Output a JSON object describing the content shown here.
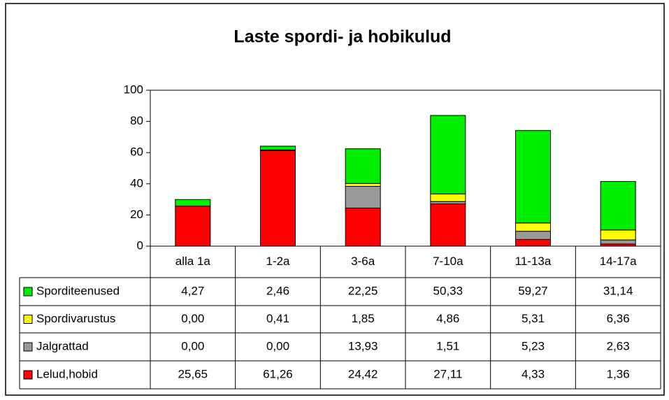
{
  "chart_data": {
    "type": "bar",
    "stacked": true,
    "title": "Laste spordi- ja hobikulud",
    "categories": [
      "alla 1a",
      "1-2a",
      "3-6a",
      "7-10a",
      "11-13a",
      "14-17a"
    ],
    "series": [
      {
        "name": "Sporditeenused",
        "color": "#00ee00",
        "values": [
          4.27,
          2.46,
          22.25,
          50.33,
          59.27,
          31.14
        ],
        "value_labels": [
          "4,27",
          "2,46",
          "22,25",
          "50,33",
          "59,27",
          "31,14"
        ]
      },
      {
        "name": "Spordivarustus",
        "color": "#ffff00",
        "values": [
          0.0,
          0.41,
          1.85,
          4.86,
          5.31,
          6.36
        ],
        "value_labels": [
          "0,00",
          "0,41",
          "1,85",
          "4,86",
          "5,31",
          "6,36"
        ]
      },
      {
        "name": "Jalgrattad",
        "color": "#999999",
        "values": [
          0.0,
          0.0,
          13.93,
          1.51,
          5.23,
          2.63
        ],
        "value_labels": [
          "0,00",
          "0,00",
          "13,93",
          "1,51",
          "5,23",
          "2,63"
        ]
      },
      {
        "name": "Lelud,hobid",
        "color": "#ff0000",
        "values": [
          25.65,
          61.26,
          24.42,
          27.11,
          4.33,
          1.36
        ],
        "value_labels": [
          "25,65",
          "61,26",
          "24,42",
          "27,11",
          "4,33",
          "1,36"
        ]
      }
    ],
    "ylim": [
      0,
      100
    ],
    "yticks": [
      0,
      20,
      40,
      60,
      80,
      100
    ],
    "grid": false
  }
}
